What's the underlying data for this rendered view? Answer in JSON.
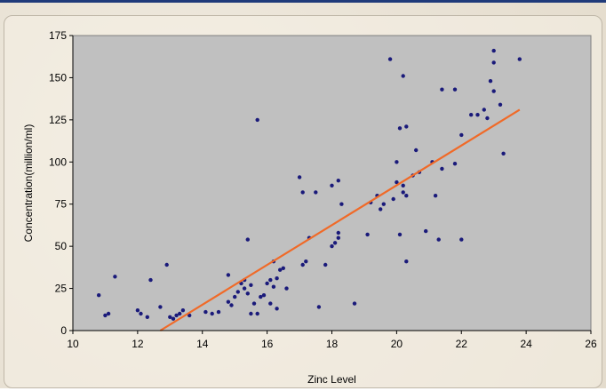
{
  "chart_data": {
    "type": "scatter",
    "title": "",
    "xlabel": "Zinc Level",
    "ylabel": "Concentration(million/ml)",
    "xlim": [
      10,
      26
    ],
    "ylim": [
      0,
      175
    ],
    "xticks": [
      "10",
      "12",
      "14",
      "16",
      "18",
      "20",
      "22",
      "24",
      "26"
    ],
    "yticks": [
      "0",
      "25",
      "50",
      "75",
      "100",
      "125",
      "150",
      "175"
    ],
    "grid": false,
    "plot_background": "#c0c0c0",
    "marker_color": "#1a1a7a",
    "trendline_color": "#f06a28",
    "trendline": {
      "x": [
        12.7,
        23.8
      ],
      "y": [
        0,
        131
      ]
    },
    "points": [
      [
        10.8,
        21
      ],
      [
        11.0,
        9
      ],
      [
        11.1,
        10
      ],
      [
        11.3,
        32
      ],
      [
        12.0,
        12
      ],
      [
        12.1,
        10
      ],
      [
        12.3,
        8
      ],
      [
        12.4,
        30
      ],
      [
        12.7,
        14
      ],
      [
        12.9,
        39
      ],
      [
        13.0,
        8
      ],
      [
        13.1,
        7
      ],
      [
        13.2,
        9
      ],
      [
        13.3,
        10
      ],
      [
        13.4,
        12
      ],
      [
        13.6,
        9
      ],
      [
        14.1,
        11
      ],
      [
        14.3,
        10
      ],
      [
        14.5,
        11
      ],
      [
        14.8,
        33
      ],
      [
        14.8,
        17
      ],
      [
        14.9,
        15
      ],
      [
        15.0,
        20
      ],
      [
        15.1,
        23
      ],
      [
        15.2,
        28
      ],
      [
        15.3,
        30
      ],
      [
        15.3,
        25
      ],
      [
        15.4,
        22
      ],
      [
        15.5,
        27
      ],
      [
        15.6,
        16
      ],
      [
        15.4,
        54
      ],
      [
        15.7,
        125
      ],
      [
        15.8,
        20
      ],
      [
        15.9,
        21
      ],
      [
        15.7,
        10
      ],
      [
        16.1,
        16
      ],
      [
        16.0,
        28
      ],
      [
        16.1,
        30
      ],
      [
        16.2,
        26
      ],
      [
        16.3,
        31
      ],
      [
        16.4,
        36
      ],
      [
        16.2,
        41
      ],
      [
        16.5,
        37
      ],
      [
        16.6,
        25
      ],
      [
        16.3,
        13
      ],
      [
        15.5,
        10
      ],
      [
        17.0,
        91
      ],
      [
        17.1,
        82
      ],
      [
        17.3,
        55
      ],
      [
        17.5,
        82
      ],
      [
        17.2,
        41
      ],
      [
        17.1,
        39
      ],
      [
        17.6,
        14
      ],
      [
        17.8,
        39
      ],
      [
        18.0,
        86
      ],
      [
        18.0,
        50
      ],
      [
        18.1,
        52
      ],
      [
        18.2,
        55
      ],
      [
        18.2,
        58
      ],
      [
        18.3,
        75
      ],
      [
        18.2,
        89
      ],
      [
        18.7,
        16
      ],
      [
        19.1,
        57
      ],
      [
        19.2,
        76
      ],
      [
        19.5,
        72
      ],
      [
        19.6,
        75
      ],
      [
        19.4,
        80
      ],
      [
        19.8,
        161
      ],
      [
        19.9,
        78
      ],
      [
        20.0,
        100
      ],
      [
        20.1,
        120
      ],
      [
        20.0,
        88
      ],
      [
        20.2,
        82
      ],
      [
        20.2,
        86
      ],
      [
        20.3,
        80
      ],
      [
        20.3,
        121
      ],
      [
        20.2,
        151
      ],
      [
        20.1,
        57
      ],
      [
        20.3,
        41
      ],
      [
        20.5,
        92
      ],
      [
        20.7,
        94
      ],
      [
        20.6,
        107
      ],
      [
        20.9,
        59
      ],
      [
        21.1,
        100
      ],
      [
        21.2,
        80
      ],
      [
        21.3,
        54
      ],
      [
        21.4,
        143
      ],
      [
        21.4,
        96
      ],
      [
        21.8,
        143
      ],
      [
        21.8,
        99
      ],
      [
        22.0,
        116
      ],
      [
        22.0,
        54
      ],
      [
        22.3,
        128
      ],
      [
        22.5,
        128
      ],
      [
        22.7,
        131
      ],
      [
        22.8,
        126
      ],
      [
        22.9,
        148
      ],
      [
        23.0,
        166
      ],
      [
        23.0,
        142
      ],
      [
        23.0,
        159
      ],
      [
        23.2,
        134
      ],
      [
        23.3,
        105
      ],
      [
        23.8,
        161
      ]
    ]
  }
}
